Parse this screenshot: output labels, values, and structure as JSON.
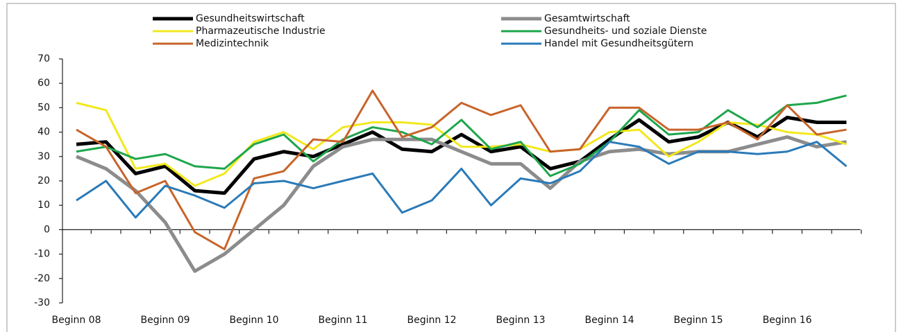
{
  "chart_data": {
    "type": "line",
    "categories": [
      "Beginn 08",
      null,
      null,
      "Beginn 09",
      null,
      null,
      "Beginn 10",
      null,
      null,
      "Beginn 11",
      null,
      null,
      "Beginn 12",
      null,
      null,
      "Beginn 13",
      null,
      null,
      "Beginn 14",
      null,
      null,
      "Beginn 15",
      null,
      null,
      "Beginn 16",
      null,
      null
    ],
    "series": [
      {
        "name": "Gesundheitswirtschaft",
        "color": "#000000",
        "values": [
          35,
          36,
          23,
          26,
          16,
          15,
          29,
          32,
          30,
          35,
          40,
          33,
          32,
          39,
          32,
          34,
          25,
          28,
          37,
          45,
          36,
          38,
          44,
          38,
          46,
          44,
          44
        ]
      },
      {
        "name": "Gesamtwirtschaft",
        "color": "#8c8c8c",
        "values": [
          30,
          25,
          16,
          3,
          -17,
          -10,
          0,
          10,
          26,
          34,
          37,
          37,
          37,
          32,
          27,
          27,
          17,
          28,
          32,
          33,
          31,
          32,
          32,
          35,
          38,
          34,
          36
        ]
      },
      {
        "name": "Pharmazeutische Industrie",
        "color": "#f2e81c",
        "values": [
          52,
          49,
          25,
          27,
          18,
          23,
          36,
          40,
          33,
          42,
          44,
          44,
          43,
          34,
          34,
          35,
          32,
          33,
          40,
          41,
          30,
          36,
          44,
          43,
          40,
          39,
          35
        ]
      },
      {
        "name": "Gesundheits- und soziale Dienste",
        "color": "#1ea64b",
        "values": [
          32,
          34,
          29,
          31,
          26,
          25,
          35,
          39,
          28,
          37,
          42,
          40,
          35,
          45,
          33,
          36,
          22,
          27,
          36,
          49,
          39,
          40,
          49,
          42,
          51,
          52,
          55
        ]
      },
      {
        "name": "Medizintechnik",
        "color": "#c8642a",
        "values": [
          41,
          34,
          15,
          20,
          -1,
          -8,
          21,
          24,
          37,
          36,
          57,
          38,
          42,
          52,
          47,
          51,
          32,
          33,
          50,
          50,
          41,
          41,
          44,
          37,
          51,
          39,
          41
        ]
      },
      {
        "name": "Handel mit Gesundheitsgütern",
        "color": "#2a7ab8",
        "values": [
          12,
          20,
          5,
          18,
          14,
          9,
          19,
          20,
          17,
          20,
          23,
          7,
          12,
          25,
          10,
          21,
          19,
          24,
          36,
          34,
          27,
          32,
          32,
          31,
          32,
          36,
          26
        ]
      }
    ],
    "ylim": [
      -30,
      70
    ],
    "yticks": [
      -30,
      -20,
      -10,
      0,
      10,
      20,
      30,
      40,
      50,
      60,
      70
    ]
  }
}
